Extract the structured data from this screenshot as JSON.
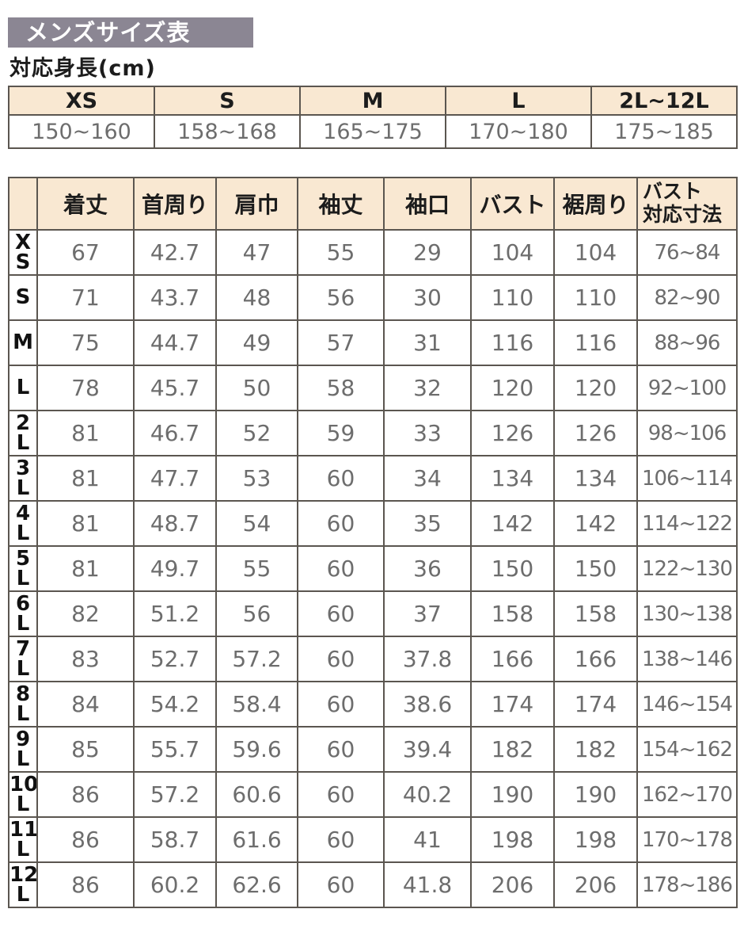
{
  "page": {
    "title": "メンズサイズ表",
    "subtitle": "対応身長(cm)"
  },
  "colors": {
    "title_bg": "#8b8693",
    "header_bg": "#f9e8d2",
    "border": "#5b5650",
    "value_text": "#6d6d6d",
    "heading_text": "#1c1c1c"
  },
  "height_table": {
    "columns": [
      "XS",
      "S",
      "M",
      "L",
      "2L~12L"
    ],
    "values": [
      "150~160",
      "158~168",
      "165~175",
      "170~180",
      "175~185"
    ]
  },
  "size_table": {
    "columns": [
      "着丈",
      "首周り",
      "肩巾",
      "袖丈",
      "袖口",
      "バスト",
      "裾周り"
    ],
    "bust_range_header_lines": [
      "バスト",
      "対応寸法"
    ],
    "rows": [
      {
        "size": "XS",
        "values": [
          "67",
          "42.7",
          "47",
          "55",
          "29",
          "104",
          "104",
          "76~84"
        ]
      },
      {
        "size": "S",
        "values": [
          "71",
          "43.7",
          "48",
          "56",
          "30",
          "110",
          "110",
          "82~90"
        ]
      },
      {
        "size": "M",
        "values": [
          "75",
          "44.7",
          "49",
          "57",
          "31",
          "116",
          "116",
          "88~96"
        ]
      },
      {
        "size": "L",
        "values": [
          "78",
          "45.7",
          "50",
          "58",
          "32",
          "120",
          "120",
          "92~100"
        ]
      },
      {
        "size": "2L",
        "values": [
          "81",
          "46.7",
          "52",
          "59",
          "33",
          "126",
          "126",
          "98~106"
        ]
      },
      {
        "size": "3L",
        "values": [
          "81",
          "47.7",
          "53",
          "60",
          "34",
          "134",
          "134",
          "106~114"
        ]
      },
      {
        "size": "4L",
        "values": [
          "81",
          "48.7",
          "54",
          "60",
          "35",
          "142",
          "142",
          "114~122"
        ]
      },
      {
        "size": "5L",
        "values": [
          "81",
          "49.7",
          "55",
          "60",
          "36",
          "150",
          "150",
          "122~130"
        ]
      },
      {
        "size": "6L",
        "values": [
          "82",
          "51.2",
          "56",
          "60",
          "37",
          "158",
          "158",
          "130~138"
        ]
      },
      {
        "size": "7L",
        "values": [
          "83",
          "52.7",
          "57.2",
          "60",
          "37.8",
          "166",
          "166",
          "138~146"
        ]
      },
      {
        "size": "8L",
        "values": [
          "84",
          "54.2",
          "58.4",
          "60",
          "38.6",
          "174",
          "174",
          "146~154"
        ]
      },
      {
        "size": "9L",
        "values": [
          "85",
          "55.7",
          "59.6",
          "60",
          "39.4",
          "182",
          "182",
          "154~162"
        ]
      },
      {
        "size": "10L",
        "values": [
          "86",
          "57.2",
          "60.6",
          "60",
          "40.2",
          "190",
          "190",
          "162~170"
        ]
      },
      {
        "size": "11L",
        "values": [
          "86",
          "58.7",
          "61.6",
          "60",
          "41",
          "198",
          "198",
          "170~178"
        ]
      },
      {
        "size": "12L",
        "values": [
          "86",
          "60.2",
          "62.6",
          "60",
          "41.8",
          "206",
          "206",
          "178~186"
        ]
      }
    ]
  }
}
